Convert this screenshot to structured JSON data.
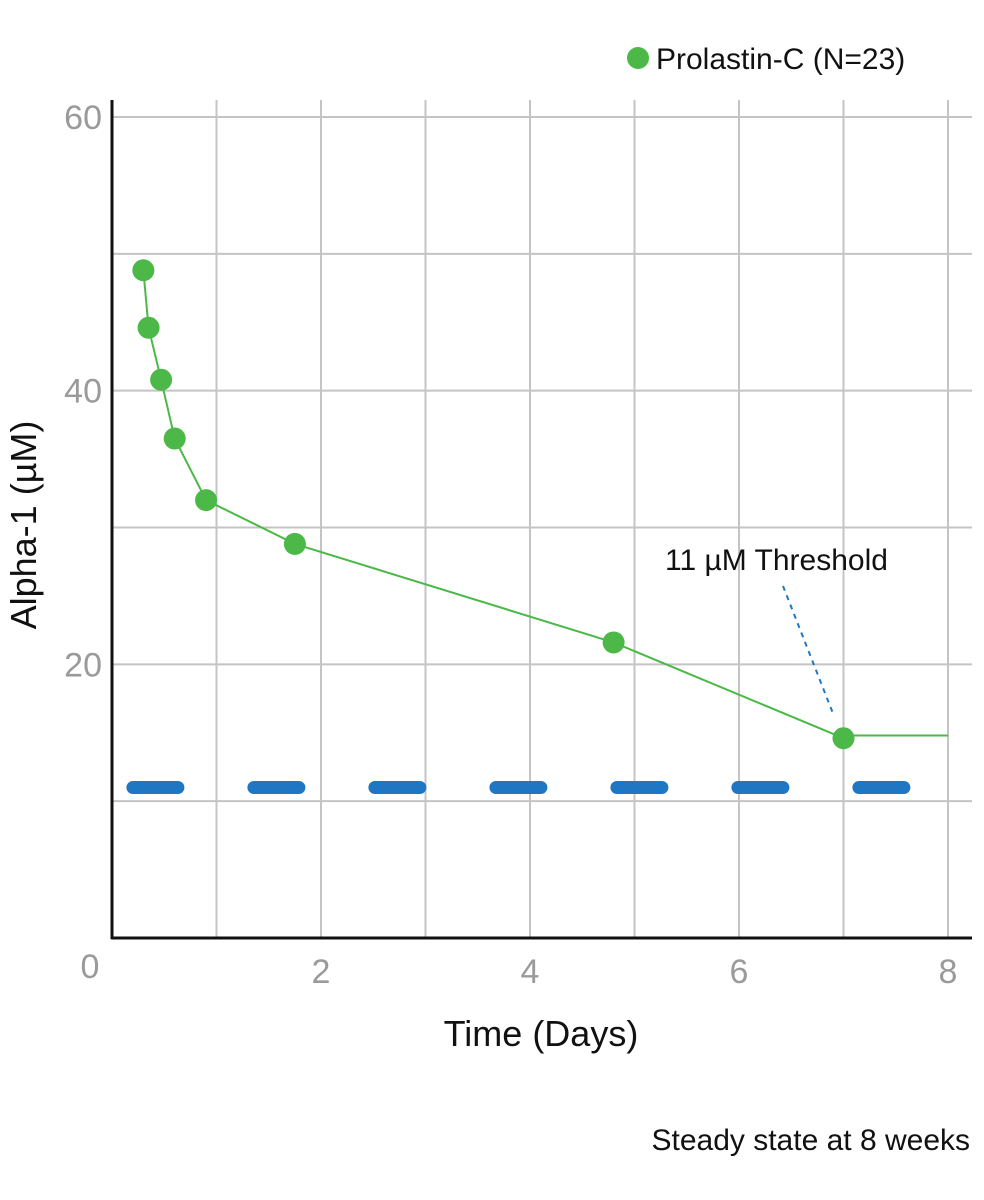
{
  "chart_data": {
    "type": "line",
    "xlabel": "Time (Days)",
    "ylabel": "Alpha-1 (µM)",
    "xlim": [
      0,
      8
    ],
    "ylim": [
      0,
      60
    ],
    "x_ticks": [
      0,
      2,
      4,
      6,
      8
    ],
    "y_ticks": [
      0,
      20,
      40,
      60
    ],
    "grid": true,
    "legend_position": "top-right",
    "series": [
      {
        "name": "Prolastin-C (N=23)",
        "color": "#4cb848",
        "x": [
          0.3,
          0.35,
          0.47,
          0.6,
          0.9,
          1.75,
          4.8,
          7.0
        ],
        "y": [
          48.8,
          44.6,
          40.8,
          36.5,
          32.0,
          28.8,
          21.6,
          14.6
        ],
        "extension": {
          "x": [
            7.0,
            8.0
          ],
          "y": [
            14.8,
            14.8
          ]
        }
      }
    ],
    "threshold": {
      "value": 11,
      "label": "11 µM Threshold",
      "color": "#1f77c4",
      "x_range": [
        0.2,
        8.3
      ]
    },
    "footnote": "Steady state at 8 weeks"
  }
}
